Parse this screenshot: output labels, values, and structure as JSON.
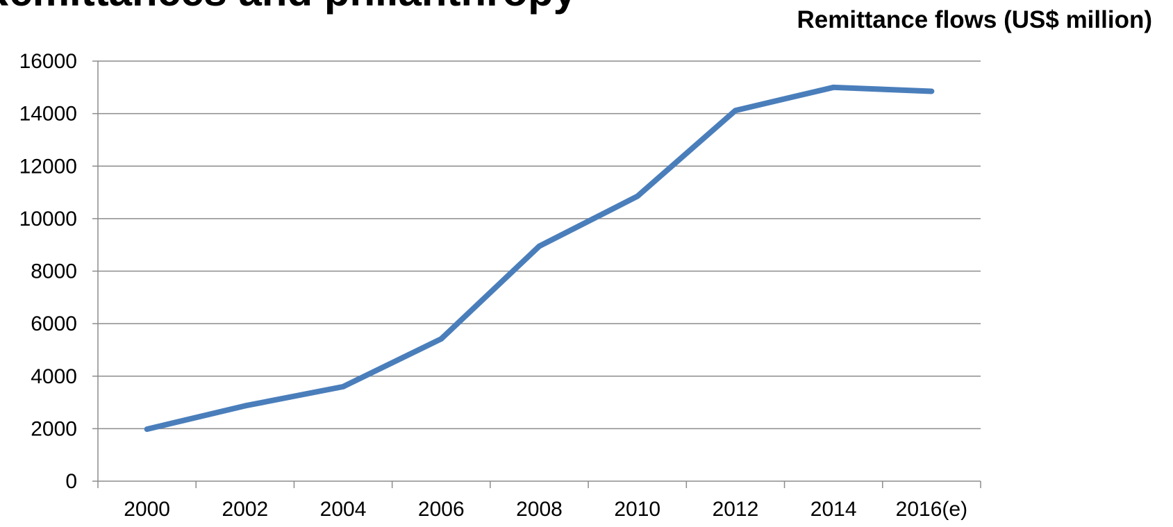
{
  "heading": "Remittances and philanthropy",
  "chart_data": {
    "type": "line",
    "title": "Remittance flows (US$ million)",
    "categories": [
      "2000",
      "2002",
      "2004",
      "2006",
      "2008",
      "2010",
      "2012",
      "2014",
      "2016(e)"
    ],
    "series": [
      {
        "name": "Remittance flows",
        "color": "#4a7ebb",
        "values": [
          1980,
          2870,
          3600,
          5420,
          8950,
          10850,
          14120,
          15000,
          14850
        ]
      }
    ],
    "ylim": [
      0,
      16000
    ],
    "yticks": [
      0,
      2000,
      4000,
      6000,
      8000,
      10000,
      12000,
      14000,
      16000
    ],
    "grid": true
  }
}
